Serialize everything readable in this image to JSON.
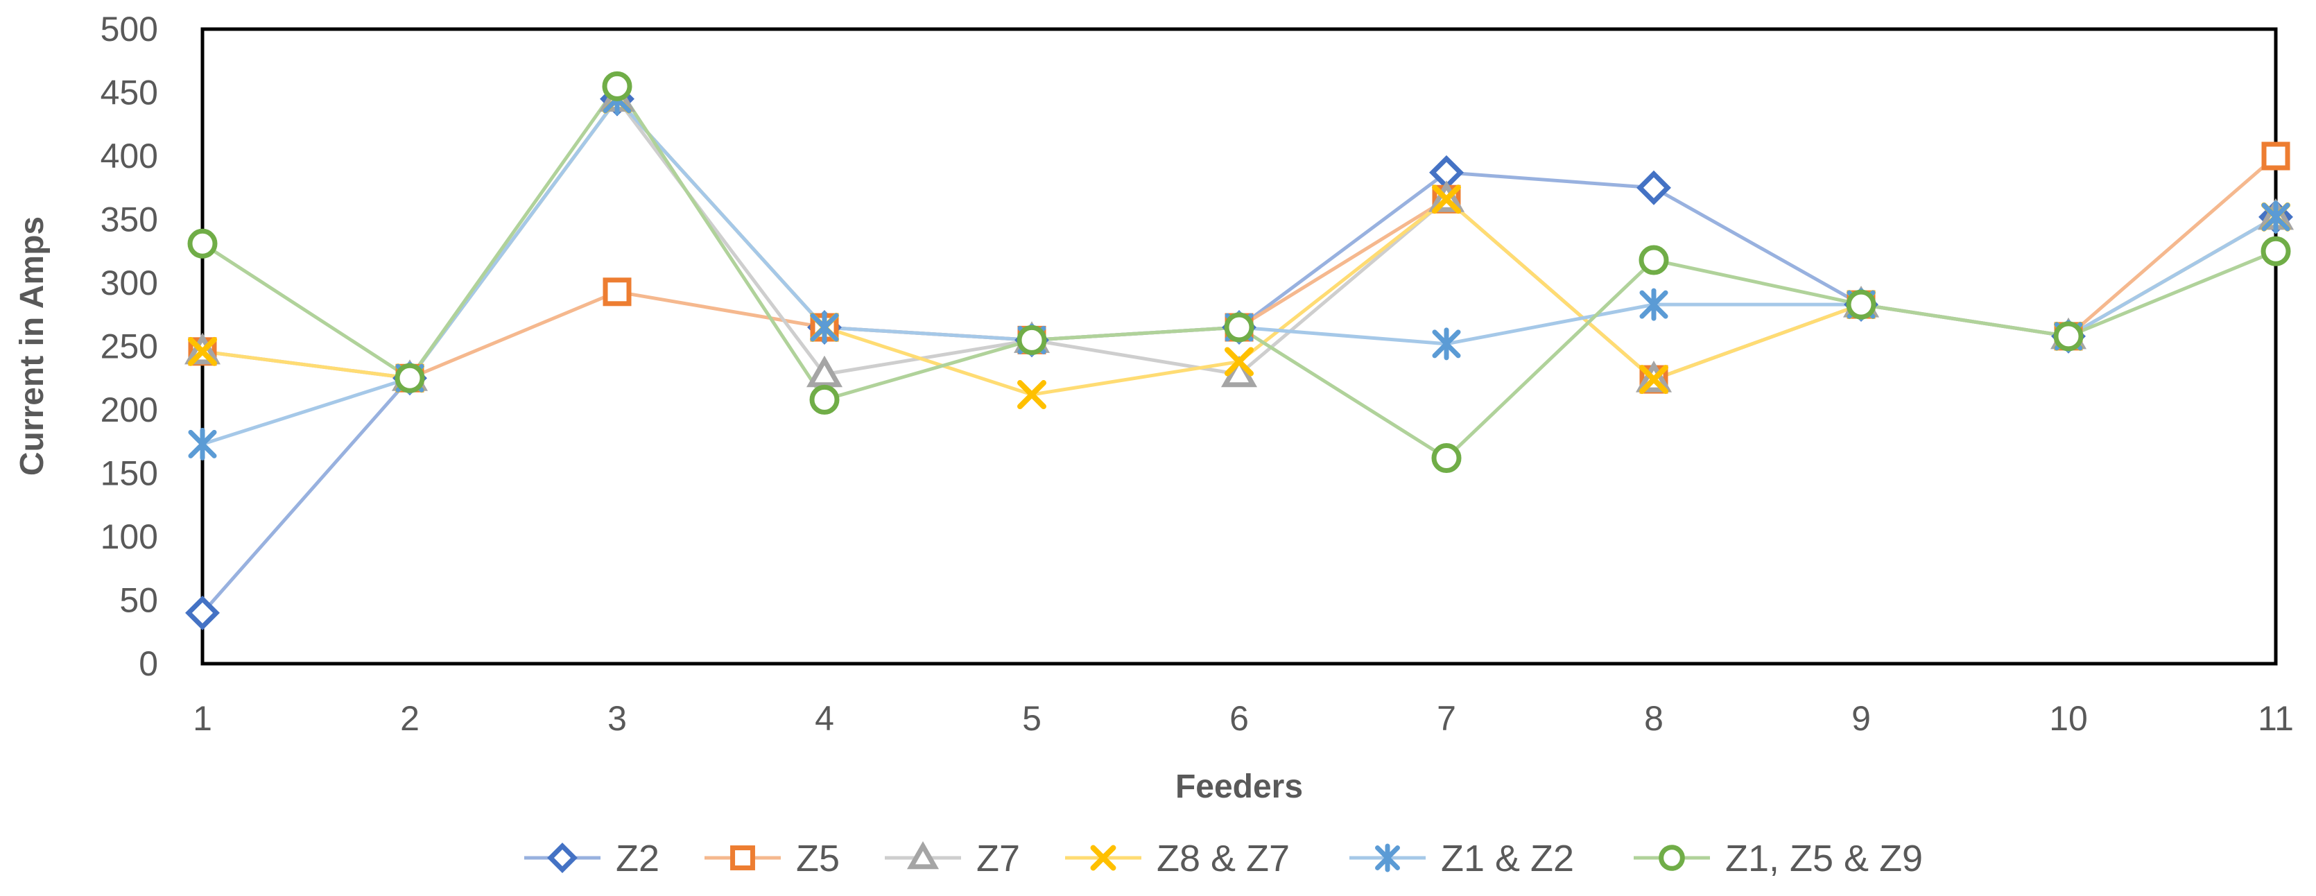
{
  "chart_data": {
    "type": "line",
    "xlabel": "Feeders",
    "ylabel": "Current in Amps",
    "x": [
      1,
      2,
      3,
      4,
      5,
      6,
      7,
      8,
      9,
      10,
      11
    ],
    "xlim": [
      1,
      11
    ],
    "ylim": [
      0,
      500
    ],
    "yticks": [
      0,
      50,
      100,
      150,
      200,
      250,
      300,
      350,
      400,
      450,
      500
    ],
    "grid": false,
    "legend": "bottom",
    "series": [
      {
        "name": "Z2",
        "color": "#4472C4",
        "marker": "diamond",
        "values": [
          40,
          225,
          445,
          265,
          255,
          265,
          387,
          375,
          283,
          258,
          352
        ]
      },
      {
        "name": "Z5",
        "color": "#ED7D31",
        "marker": "square",
        "values": [
          246,
          225,
          293,
          265,
          255,
          265,
          366,
          224,
          283,
          258,
          400
        ]
      },
      {
        "name": "Z7",
        "color": "#A5A5A5",
        "marker": "triangle",
        "values": [
          246,
          225,
          445,
          228,
          255,
          228,
          366,
          224,
          283,
          258,
          352
        ]
      },
      {
        "name": "Z8 & Z7",
        "color": "#FFC000",
        "marker": "x",
        "values": [
          246,
          225,
          445,
          265,
          212,
          238,
          366,
          224,
          283,
          258,
          352
        ]
      },
      {
        "name": "Z1 & Z2",
        "color": "#5B9BD5",
        "marker": "asterisk",
        "values": [
          173,
          225,
          445,
          265,
          255,
          265,
          252,
          283,
          283,
          258,
          352
        ]
      },
      {
        "name": "Z1, Z5 & Z9",
        "color": "#70AD47",
        "marker": "circle",
        "values": [
          331,
          225,
          455,
          208,
          255,
          265,
          162,
          318,
          283,
          258,
          325
        ]
      }
    ]
  }
}
